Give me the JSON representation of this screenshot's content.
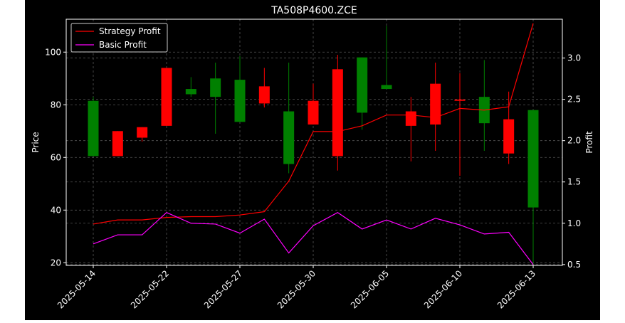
{
  "chart_data": {
    "type": "candlestick",
    "title": "TA508P4600.ZCE",
    "ylabel_left": "Price",
    "ylabel_right": "Profit",
    "ylim_left": [
      19.0,
      112.5
    ],
    "ylim_right": [
      0.49,
      3.47
    ],
    "yticks_left": [
      20,
      40,
      60,
      80,
      100
    ],
    "yticks_right": [
      0.5,
      1.0,
      1.5,
      2.0,
      2.5,
      3.0
    ],
    "xtick_labels": [
      {
        "index": 0,
        "label": "2025-05-14"
      },
      {
        "index": 3,
        "label": "2025-05-22"
      },
      {
        "index": 6,
        "label": "2025-05-27"
      },
      {
        "index": 9,
        "label": "2025-05-30"
      },
      {
        "index": 12,
        "label": "2025-06-05"
      },
      {
        "index": 15,
        "label": "2025-06-10"
      },
      {
        "index": 18,
        "label": "2025-06-13"
      }
    ],
    "grid": true,
    "legend_position": "top-left",
    "colors": {
      "up": "#008000",
      "down": "#ff0000",
      "strategy": "#ff0000",
      "basic": "#ff00ff",
      "background": "#000000",
      "foreground": "#ffffff",
      "grid": "#555555"
    },
    "candles": [
      {
        "open": 60.5,
        "high": 83.0,
        "low": 60.5,
        "close": 81.5
      },
      {
        "open": 70.0,
        "high": 70.0,
        "low": 60.5,
        "close": 60.5
      },
      {
        "open": 71.5,
        "high": 71.5,
        "low": 66.0,
        "close": 67.5
      },
      {
        "open": 94.0,
        "high": 94.0,
        "low": 72.0,
        "close": 72.0
      },
      {
        "open": 84.0,
        "high": 90.5,
        "low": 83.0,
        "close": 86.0
      },
      {
        "open": 83.0,
        "high": 96.0,
        "low": 69.0,
        "close": 90.0
      },
      {
        "open": 73.5,
        "high": 98.5,
        "low": 73.5,
        "close": 89.5
      },
      {
        "open": 87.0,
        "high": 94.0,
        "low": 79.0,
        "close": 80.5
      },
      {
        "open": 57.5,
        "high": 96.0,
        "low": 54.0,
        "close": 77.5
      },
      {
        "open": 81.5,
        "high": 88.0,
        "low": 72.5,
        "close": 72.5
      },
      {
        "open": 93.5,
        "high": 99.0,
        "low": 55.0,
        "close": 60.5
      },
      {
        "open": 77.0,
        "high": 98.0,
        "low": 70.5,
        "close": 98.0
      },
      {
        "open": 86.0,
        "high": 110.0,
        "low": 86.0,
        "close": 87.5
      },
      {
        "open": 77.5,
        "high": 83.0,
        "low": 58.5,
        "close": 72.0
      },
      {
        "open": 88.0,
        "high": 96.0,
        "low": 62.5,
        "close": 72.5
      },
      {
        "open": 82.0,
        "high": 92.0,
        "low": 53.0,
        "close": 81.5
      },
      {
        "open": 73.0,
        "high": 97.0,
        "low": 62.5,
        "close": 83.0
      },
      {
        "open": 74.5,
        "high": 85.0,
        "low": 57.5,
        "close": 61.5
      },
      {
        "open": 41.0,
        "high": 78.0,
        "low": 19.5,
        "close": 78.0
      }
    ],
    "series": [
      {
        "name": "Strategy Profit",
        "axis": "right",
        "values": [
          0.99,
          1.04,
          1.04,
          1.07,
          1.08,
          1.08,
          1.1,
          1.14,
          1.51,
          2.11,
          2.11,
          2.18,
          2.31,
          2.31,
          2.28,
          2.39,
          2.37,
          2.41,
          3.42
        ]
      },
      {
        "name": "Basic Profit",
        "axis": "right",
        "values": [
          0.75,
          0.86,
          0.86,
          1.13,
          1.0,
          0.99,
          0.88,
          1.05,
          0.64,
          0.97,
          1.13,
          0.93,
          1.04,
          0.93,
          1.06,
          0.98,
          0.87,
          0.89,
          0.5
        ]
      }
    ]
  }
}
